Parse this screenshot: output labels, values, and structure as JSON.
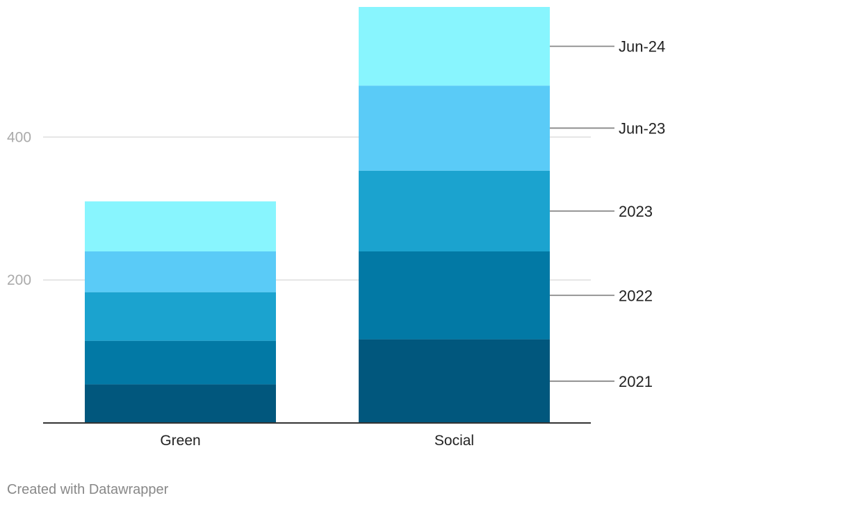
{
  "chart_data": {
    "type": "bar",
    "stacked": true,
    "categories": [
      "Green",
      "Social"
    ],
    "series": [
      {
        "name": "2021",
        "values": [
          54,
          117
        ],
        "color": "#01577d"
      },
      {
        "name": "2022",
        "values": [
          61,
          123
        ],
        "color": "#0279a5"
      },
      {
        "name": "2023",
        "values": [
          68,
          113
        ],
        "color": "#1ba3cf"
      },
      {
        "name": "Jun-23",
        "values": [
          57,
          119
        ],
        "color": "#5acbf7"
      },
      {
        "name": "Jun-24",
        "values": [
          70,
          110
        ],
        "color": "#88f5fe"
      }
    ],
    "ylim": [
      0,
      582
    ],
    "yticks": [
      200,
      400
    ],
    "grid": true,
    "legend": "direct-labels-right",
    "title": "",
    "xlabel": "",
    "ylabel": ""
  },
  "colors": {
    "gridline": "#dddddd",
    "axis": "#333333",
    "tick_label": "#aaaaaa",
    "category_label": "#222222",
    "leader_line": "#888888",
    "series_label": "#222222",
    "credit": "#888888"
  },
  "footer": {
    "credit": "Created with Datawrapper"
  }
}
